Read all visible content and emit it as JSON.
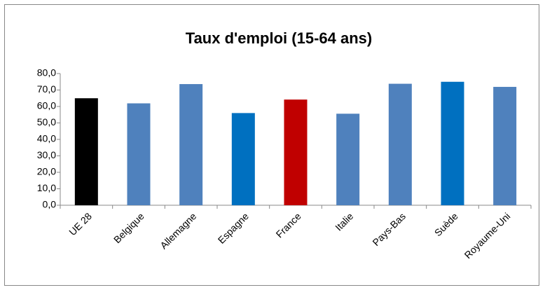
{
  "chart_data": {
    "type": "bar",
    "title": "Taux d'emploi  (15-64 ans)",
    "categories": [
      "UE 28",
      "Belgique",
      "Allemagne",
      "Espagne",
      "France",
      "Italie",
      "Pays-Bas",
      "Suède",
      "Royaume-Uni"
    ],
    "values": [
      65.0,
      61.9,
      73.6,
      56.0,
      64.2,
      55.6,
      73.8,
      75.0,
      71.9
    ],
    "colors": [
      "#000000",
      "#4f81bd",
      "#4f81bd",
      "#0070c0",
      "#c00000",
      "#4f81bd",
      "#4f81bd",
      "#0070c0",
      "#4f81bd"
    ],
    "ylim": [
      0,
      80
    ],
    "yticks": [
      {
        "value": 0,
        "label": "0,0"
      },
      {
        "value": 10,
        "label": "10,0"
      },
      {
        "value": 20,
        "label": "20,0"
      },
      {
        "value": 30,
        "label": "30,0"
      },
      {
        "value": 40,
        "label": "40,0"
      },
      {
        "value": 50,
        "label": "50,0"
      },
      {
        "value": 60,
        "label": "60,0"
      },
      {
        "value": 70,
        "label": "70,0"
      },
      {
        "value": 80,
        "label": "80,0"
      }
    ],
    "grid": false
  }
}
